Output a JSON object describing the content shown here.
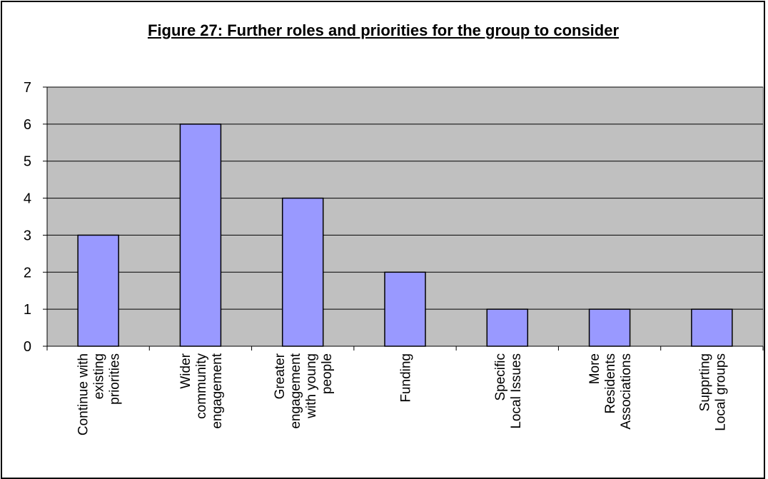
{
  "chart_data": {
    "type": "bar",
    "title": "Figure 27:  Further roles and priorities for the group to consider",
    "categories": [
      [
        "Continue with",
        "existing",
        "priorities"
      ],
      [
        "Wider",
        "community",
        "engagement"
      ],
      [
        "Greater",
        "engagement",
        "with young",
        "people"
      ],
      [
        "Funding"
      ],
      [
        "Specific",
        "Local Issues"
      ],
      [
        "More",
        "Residents",
        "Associations"
      ],
      [
        "Supprting",
        "Local groups"
      ]
    ],
    "values": [
      3,
      6,
      4,
      2,
      1,
      1,
      1
    ],
    "ylim": [
      0,
      7
    ],
    "yticks": [
      0,
      1,
      2,
      3,
      4,
      5,
      6,
      7
    ],
    "xlabel": "",
    "ylabel": "",
    "grid": true,
    "legend": "none",
    "colors": {
      "plot_background": "#c0c0c0",
      "bar_fill": "#9999ff",
      "bar_stroke": "#000000",
      "gridline": "#000000"
    }
  }
}
